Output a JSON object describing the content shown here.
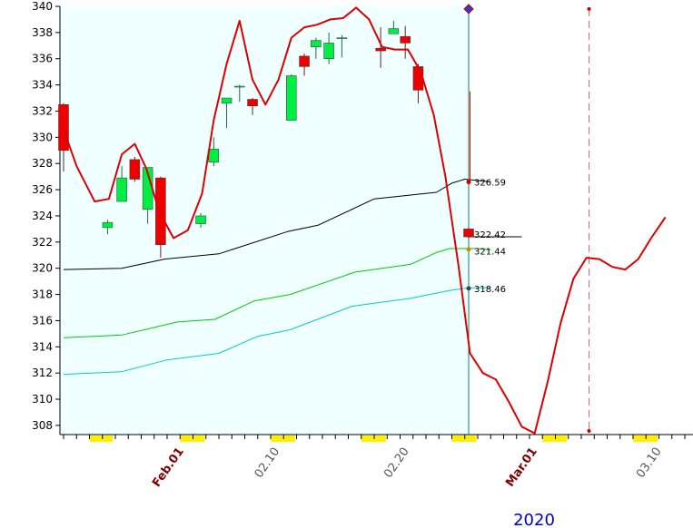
{
  "chart_data": {
    "type": "candlestick",
    "ylim": [
      307.3,
      340
    ],
    "y_ticks": [
      308,
      310,
      312,
      314,
      316,
      318,
      320,
      322,
      324,
      326,
      328,
      330,
      332,
      334,
      336,
      338,
      340
    ],
    "x_labels": [
      {
        "text": "Feb.01",
        "day": 9.3,
        "color": "#800000",
        "bold": true
      },
      {
        "text": "02.10",
        "day": 16.7,
        "color": "#555555",
        "bold": false
      },
      {
        "text": "02.20",
        "day": 26.7,
        "color": "#555555",
        "bold": false
      },
      {
        "text": "Mar.01",
        "day": 36.6,
        "color": "#800000",
        "bold": true
      },
      {
        "text": "03.10",
        "day": 46.2,
        "color": "#555555",
        "bold": false
      }
    ],
    "year": "2020",
    "year_color": "#0000cc",
    "colors": {
      "background_hist": "#f0ffff",
      "up": "#00ee44",
      "down": "#ee0000",
      "forecast": "#dd0000",
      "ma_black": "#000000",
      "ma_green": "#00cc00",
      "ma_cyan": "#00cccc",
      "weekend": "#ffee00"
    },
    "candles": [
      {
        "day": 0,
        "o": 332.5,
        "h": 332.6,
        "l": 327.4,
        "c": 329.0
      },
      {
        "day": 3.4,
        "o": 323.1,
        "h": 323.7,
        "l": 322.6,
        "c": 323.5
      },
      {
        "day": 4.5,
        "o": 325.1,
        "h": 327.8,
        "l": 325.1,
        "c": 326.9
      },
      {
        "day": 5.5,
        "o": 328.3,
        "h": 328.5,
        "l": 326.6,
        "c": 326.8
      },
      {
        "day": 6.5,
        "o": 324.5,
        "h": 327.7,
        "l": 323.4,
        "c": 327.7
      },
      {
        "day": 7.5,
        "o": 326.9,
        "h": 327.0,
        "l": 320.8,
        "c": 321.8
      },
      {
        "day": 10.6,
        "o": 323.4,
        "h": 324.2,
        "l": 323.1,
        "c": 324.0
      },
      {
        "day": 11.6,
        "o": 328.1,
        "h": 330.0,
        "l": 327.8,
        "c": 329.1
      },
      {
        "day": 12.6,
        "o": 332.6,
        "h": 333.0,
        "l": 330.7,
        "c": 333.0
      },
      {
        "day": 13.6,
        "o": 333.9,
        "h": 334.0,
        "l": 332.7,
        "c": 333.9
      },
      {
        "day": 14.6,
        "o": 332.9,
        "h": 333.0,
        "l": 331.7,
        "c": 332.4
      },
      {
        "day": 17.6,
        "o": 331.3,
        "h": 334.8,
        "l": 331.3,
        "c": 334.7
      },
      {
        "day": 18.6,
        "o": 336.2,
        "h": 336.4,
        "l": 334.7,
        "c": 335.4
      },
      {
        "day": 19.5,
        "o": 336.9,
        "h": 337.6,
        "l": 336.0,
        "c": 337.4
      },
      {
        "day": 20.5,
        "o": 336.0,
        "h": 338.0,
        "l": 335.6,
        "c": 337.2
      },
      {
        "day": 21.5,
        "o": 337.6,
        "h": 337.8,
        "l": 336.1,
        "c": 337.6
      },
      {
        "day": 24.5,
        "o": 336.8,
        "h": 338.4,
        "l": 335.3,
        "c": 336.6
      },
      {
        "day": 25.5,
        "o": 337.9,
        "h": 338.9,
        "l": 337.9,
        "c": 338.3
      },
      {
        "day": 26.4,
        "o": 337.7,
        "h": 338.5,
        "l": 336.0,
        "c": 337.2
      },
      {
        "day": 27.4,
        "o": 335.4,
        "h": 335.6,
        "l": 332.6,
        "c": 333.6
      },
      {
        "day": 31.3,
        "o": 323.0,
        "h": 323.1,
        "l": 322.3,
        "c": 322.4
      }
    ],
    "forecast_line": [
      [
        0,
        330.6
      ],
      [
        1,
        327.8
      ],
      [
        2.4,
        325.1
      ],
      [
        3.5,
        325.3
      ],
      [
        4.5,
        328.7
      ],
      [
        5.5,
        329.5
      ],
      [
        6.4,
        327.6
      ],
      [
        7.4,
        324.3
      ],
      [
        8.5,
        322.3
      ],
      [
        9.6,
        322.9
      ],
      [
        10.7,
        325.7
      ],
      [
        11.6,
        331.3
      ],
      [
        12.6,
        335.6
      ],
      [
        13.6,
        338.9
      ],
      [
        14.6,
        334.4
      ],
      [
        15.6,
        332.5
      ],
      [
        16.6,
        334.4
      ],
      [
        17.6,
        337.6
      ],
      [
        18.6,
        338.4
      ],
      [
        19.6,
        338.6
      ],
      [
        20.6,
        339.0
      ],
      [
        21.6,
        339.1
      ],
      [
        22.6,
        339.9
      ],
      [
        23.6,
        339.0
      ],
      [
        24.6,
        336.9
      ],
      [
        25.6,
        336.7
      ],
      [
        26.6,
        336.7
      ],
      [
        27.6,
        335.0
      ],
      [
        28.6,
        331.7
      ],
      [
        29.5,
        327.0
      ],
      [
        30.5,
        320.3
      ],
      [
        31.4,
        313.5
      ],
      [
        32.4,
        312.0
      ],
      [
        33.4,
        311.5
      ],
      [
        34.4,
        309.8
      ],
      [
        35.4,
        307.9
      ],
      [
        36.4,
        307.4
      ],
      [
        37.4,
        311.3
      ],
      [
        38.4,
        315.8
      ],
      [
        39.4,
        319.2
      ],
      [
        40.4,
        320.8
      ],
      [
        41.4,
        320.7
      ],
      [
        42.4,
        320.1
      ],
      [
        43.4,
        319.9
      ],
      [
        44.4,
        320.7
      ],
      [
        45.4,
        322.3
      ],
      [
        46.5,
        323.9
      ]
    ],
    "ma_black": [
      [
        0,
        319.9
      ],
      [
        4.5,
        320.0
      ],
      [
        7.8,
        320.7
      ],
      [
        12.0,
        321.1
      ],
      [
        17.3,
        322.8
      ],
      [
        19.7,
        323.3
      ],
      [
        24.0,
        325.3
      ],
      [
        28.8,
        325.8
      ],
      [
        30.0,
        326.5
      ],
      [
        31.0,
        326.8
      ],
      [
        32.0,
        326.7
      ],
      [
        33.0,
        326.6
      ]
    ],
    "ma_green": [
      [
        0,
        314.7
      ],
      [
        4.5,
        314.9
      ],
      [
        8.8,
        315.9
      ],
      [
        11.7,
        316.1
      ],
      [
        14.7,
        317.5
      ],
      [
        17.5,
        318.0
      ],
      [
        22.5,
        319.7
      ],
      [
        26.8,
        320.3
      ],
      [
        28.8,
        321.2
      ],
      [
        29.8,
        321.5
      ],
      [
        32.0,
        321.5
      ],
      [
        33.0,
        321.4
      ]
    ],
    "ma_cyan": [
      [
        0,
        311.9
      ],
      [
        4.5,
        312.1
      ],
      [
        8.0,
        313.0
      ],
      [
        12.0,
        313.5
      ],
      [
        15.0,
        314.8
      ],
      [
        17.5,
        315.3
      ],
      [
        22.3,
        317.1
      ],
      [
        26.8,
        317.7
      ],
      [
        29.8,
        318.3
      ],
      [
        31.3,
        318.5
      ],
      [
        33.0,
        318.5
      ]
    ],
    "price_line": {
      "from_day": 31.2,
      "to_day": 35.4,
      "value": 322.4
    },
    "annotations": [
      {
        "text": "326.59",
        "value": 326.59,
        "dot_color": "#cc0000"
      },
      {
        "text": "322.42",
        "value": 322.42,
        "dot_color": null
      },
      {
        "text": "321.44",
        "value": 321.44,
        "dot_color": "#cc8800"
      },
      {
        "text": "318.46",
        "value": 318.46,
        "dot_color": "#444444"
      }
    ],
    "annotation_label_values": [
      326.59,
      322.62,
      321.34,
      318.46
    ],
    "current_day": 31.3,
    "current_high": 339.8,
    "current_forecast_top": 333.5,
    "dashed_marker_day": 40.6,
    "weekend_bands": [
      [
        2.0,
        3.8
      ],
      [
        9.0,
        10.9
      ],
      [
        16.0,
        17.9
      ],
      [
        23.0,
        24.9
      ],
      [
        30.0,
        31.9
      ],
      [
        37.0,
        38.9
      ],
      [
        44.0,
        45.9
      ]
    ],
    "grid": false,
    "title": "",
    "xlabel": "",
    "ylabel": ""
  }
}
